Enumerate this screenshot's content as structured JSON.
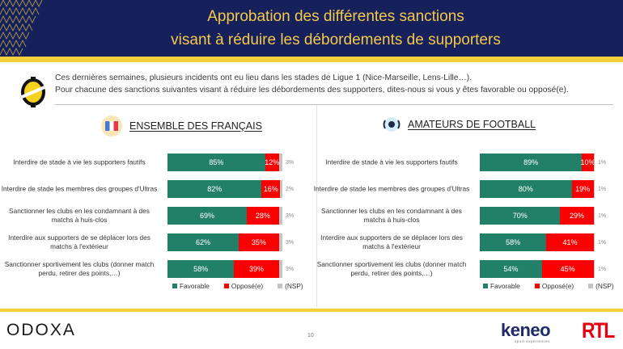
{
  "header": {
    "title_line1": "Approbation des différentes sanctions",
    "title_line2": "visant à réduire les débordements de supporters"
  },
  "intro": {
    "line1": "Ces dernières semaines, plusieurs incidents ont eu lieu dans les stades de Ligue 1 (Nice-Marseille, Lens-Lille…).",
    "line2": "Pour chacune des sanctions suivantes visant à réduire les débordements des supporters, dites-nous si vous y êtes favorable ou opposé(e)."
  },
  "colors": {
    "favorable": "#238068",
    "oppose": "#fa0000",
    "nsp": "#c4c4c4",
    "header_bg": "#16215c",
    "accent": "#f6cf3d"
  },
  "chart_data": [
    {
      "type": "bar",
      "orientation": "horizontal-stacked",
      "title": "ENSEMBLE DES FRANÇAIS",
      "icon": "france-flag-icon",
      "categories": [
        "Interdire de stade à vie les supporters fautifs",
        "Interdire de stade les membres des groupes d'Ultras",
        "Sanctionner les clubs en les condamnant à des matchs à huis-clos",
        "Interdire aux supporters de se déplacer lors des matchs à l'extérieur",
        "Sanctionner sportivement les clubs (donner match perdu, retirer des points,…)"
      ],
      "series": [
        {
          "name": "Favorable",
          "values": [
            85,
            82,
            69,
            62,
            58
          ]
        },
        {
          "name": "Opposé(e)",
          "values": [
            12,
            16,
            28,
            35,
            39
          ]
        },
        {
          "name": "(NSP)",
          "values": [
            3,
            2,
            3,
            3,
            3
          ]
        }
      ],
      "xlim": [
        0,
        100
      ],
      "legend": "bottom",
      "grid": false
    },
    {
      "type": "bar",
      "orientation": "horizontal-stacked",
      "title": "AMATEURS DE FOOTBALL",
      "icon": "football-icon",
      "categories": [
        "Interdire de stade à vie les supporters fautifs",
        "Interdire de stade les membres des groupes d'Ultras",
        "Sanctionner les clubs en les condamnant à des matchs à huis-clos",
        "Interdire aux supporters de se déplacer lors des matchs à l'extérieur",
        "Sanctionner sportivement les clubs (donner match perdu, retirer des points,…)"
      ],
      "series": [
        {
          "name": "Favorable",
          "values": [
            89,
            80,
            70,
            58,
            54
          ]
        },
        {
          "name": "Opposé(e)",
          "values": [
            10,
            19,
            29,
            41,
            45
          ]
        },
        {
          "name": "(NSP)",
          "values": [
            1,
            1,
            1,
            1,
            1
          ]
        }
      ],
      "xlim": [
        0,
        100
      ],
      "legend": "bottom",
      "grid": false
    }
  ],
  "footer": {
    "brand": "ODOXA",
    "page_number": "10",
    "partner1": "keneo",
    "partner1_sub": "sport experiences",
    "partner2": "RTL"
  }
}
